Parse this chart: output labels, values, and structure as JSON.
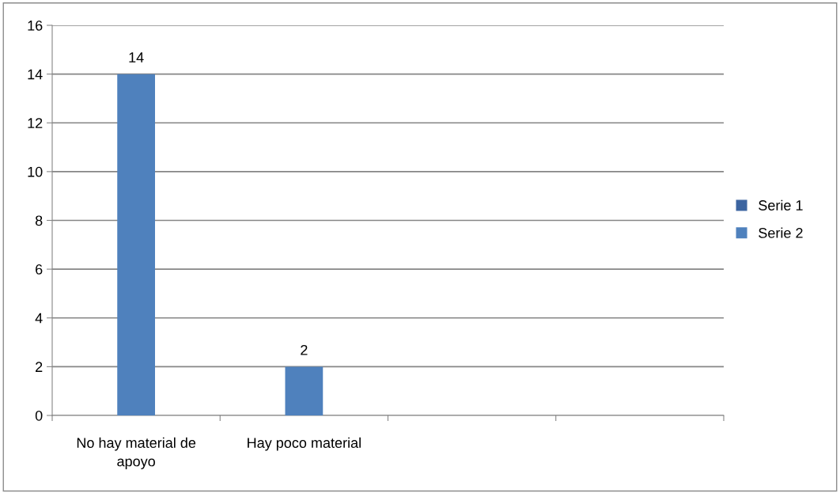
{
  "chart_data": {
    "type": "bar",
    "categories": [
      "No hay material de apoyo",
      "Hay poco material",
      null,
      null
    ],
    "series": [
      {
        "name": "Serie 1",
        "color": "#3c64a0",
        "values": [
          null,
          null,
          null,
          null
        ]
      },
      {
        "name": "Serie 2",
        "color": "#4f81bd",
        "values": [
          14,
          2,
          null,
          null
        ]
      }
    ],
    "ylim": [
      0,
      16
    ],
    "yticks": [
      0,
      2,
      4,
      6,
      8,
      10,
      12,
      14,
      16
    ],
    "grid": "y",
    "legend": "right",
    "data_labels": true
  }
}
